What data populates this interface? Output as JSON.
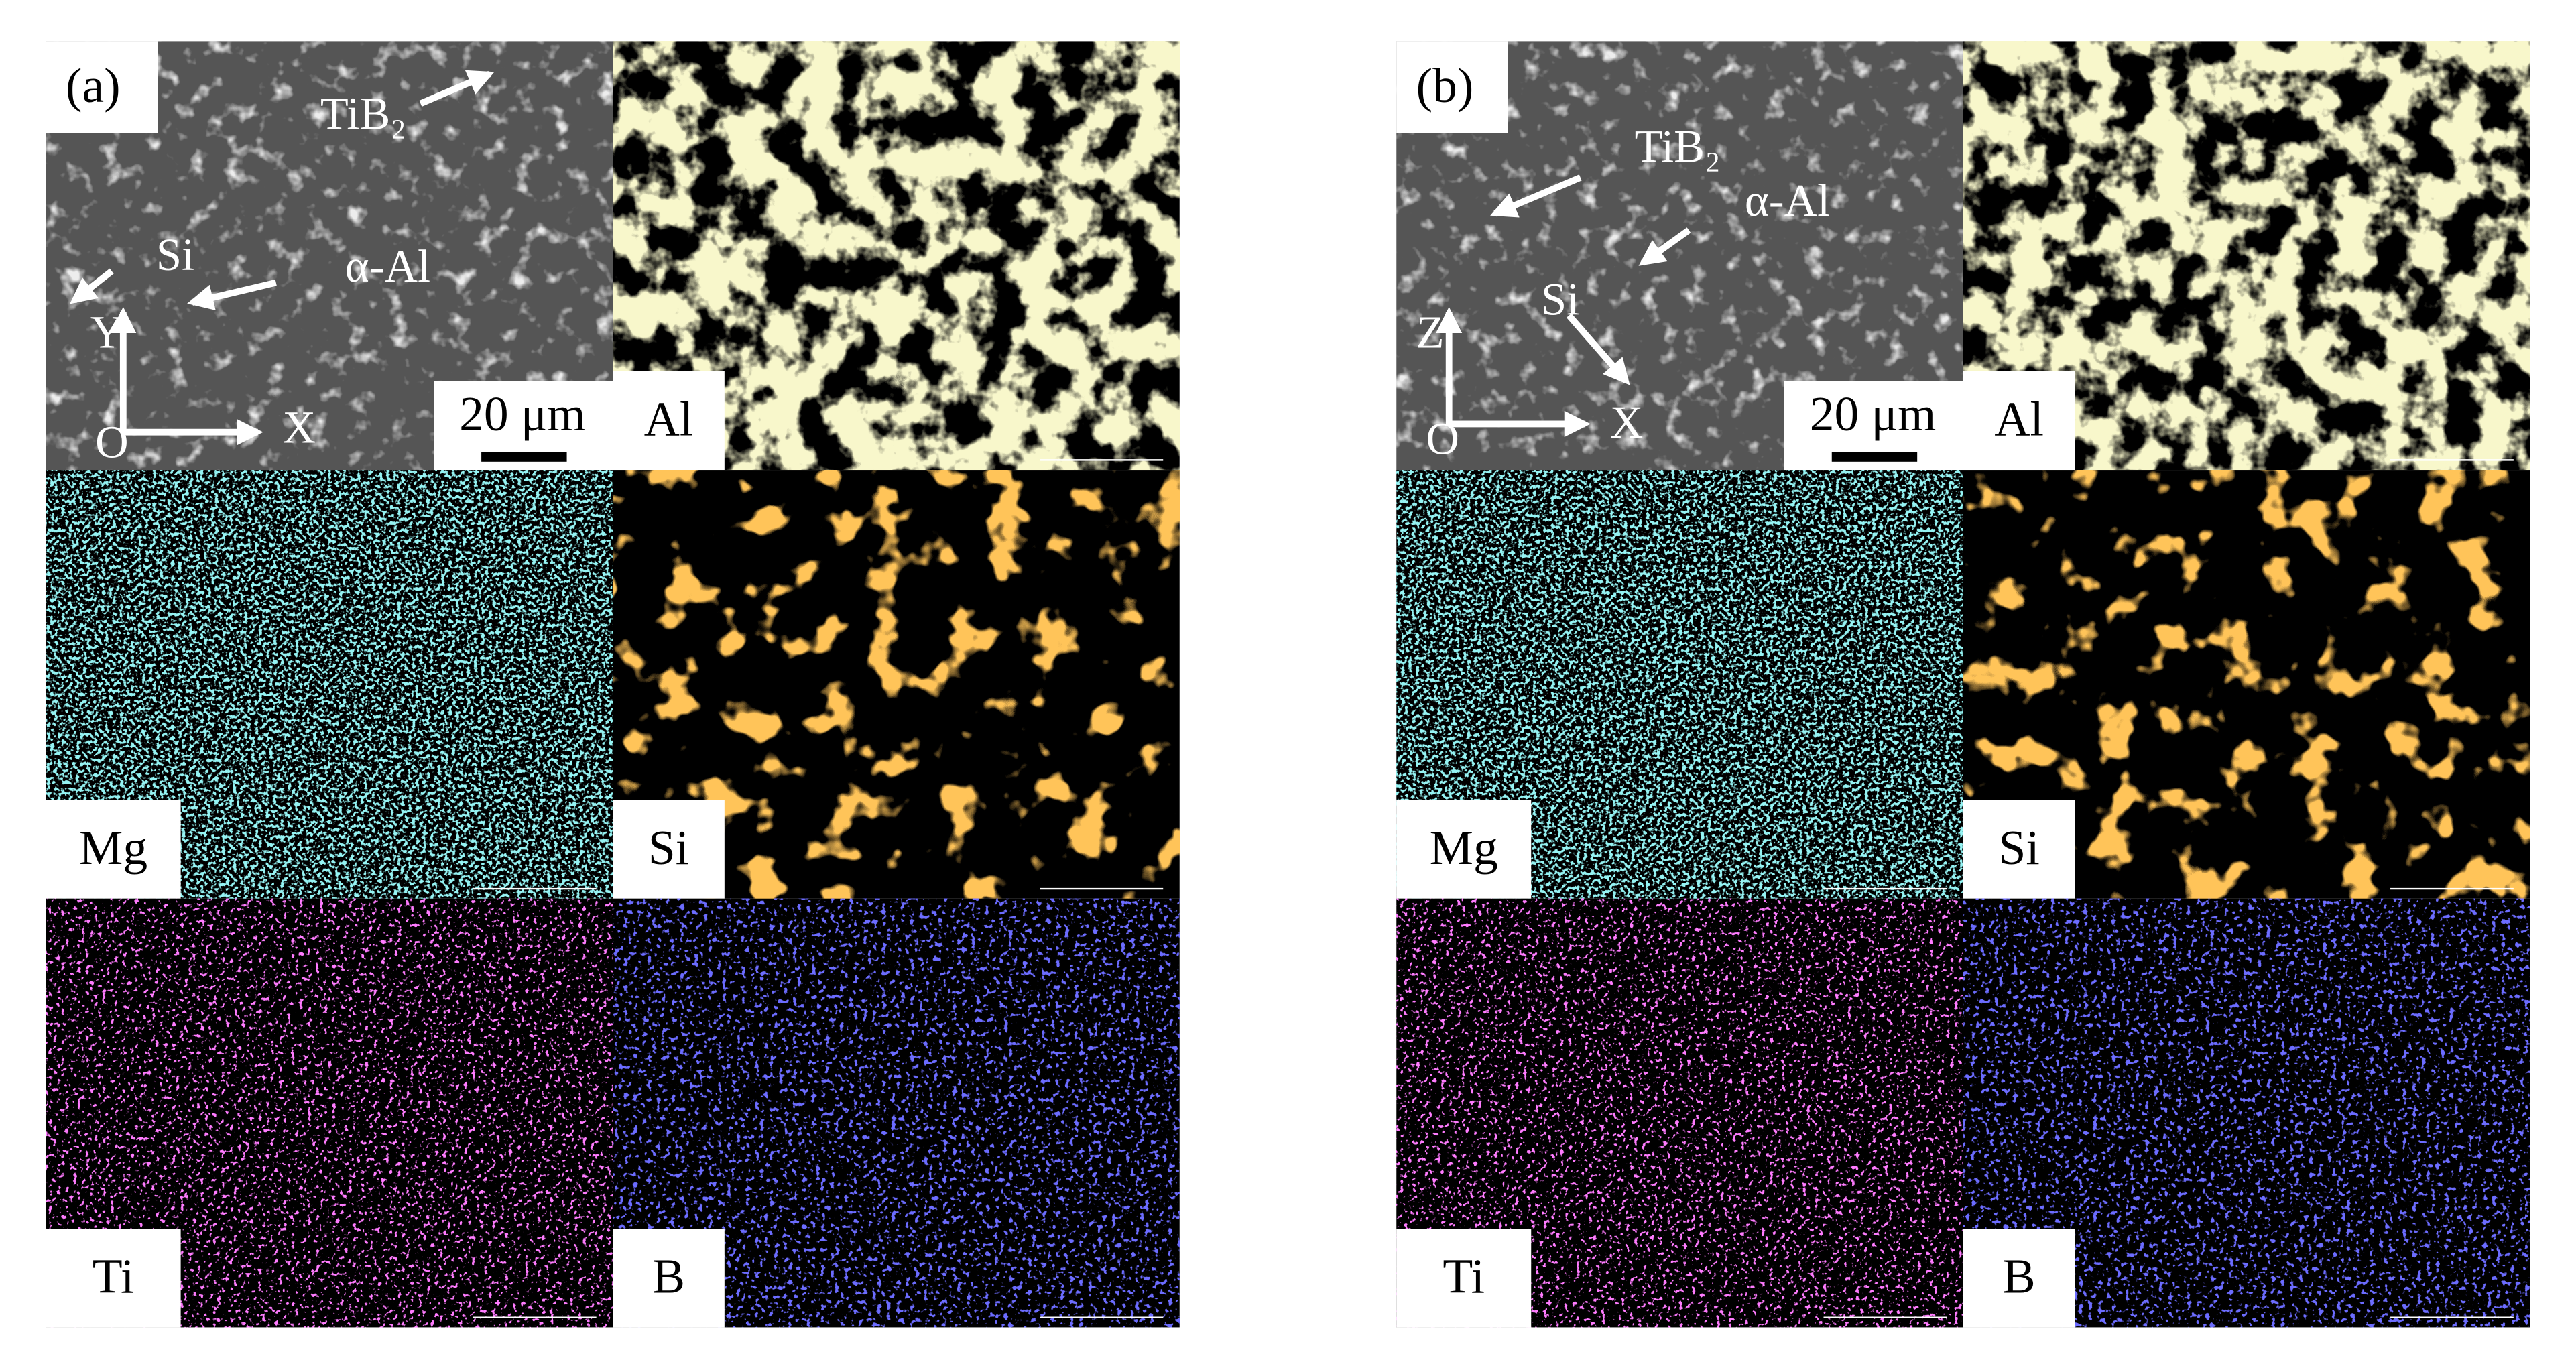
{
  "panels": [
    {
      "label": "(a)",
      "sem": {
        "annotations": [
          "TiB₂",
          "Si",
          "α-Al"
        ],
        "axes": [
          "Y",
          "X",
          "O"
        ],
        "scale_bar": "20 μm"
      },
      "maps": [
        "Al",
        "Mg",
        "Si",
        "Ti",
        "B"
      ]
    },
    {
      "label": "(b)",
      "sem": {
        "annotations": [
          "TiB₂",
          "α-Al",
          "Si"
        ],
        "axes": [
          "Z",
          "X",
          "O"
        ],
        "scale_bar": "20 μm"
      },
      "maps": [
        "Al",
        "Mg",
        "Si",
        "Ti",
        "B"
      ]
    }
  ]
}
